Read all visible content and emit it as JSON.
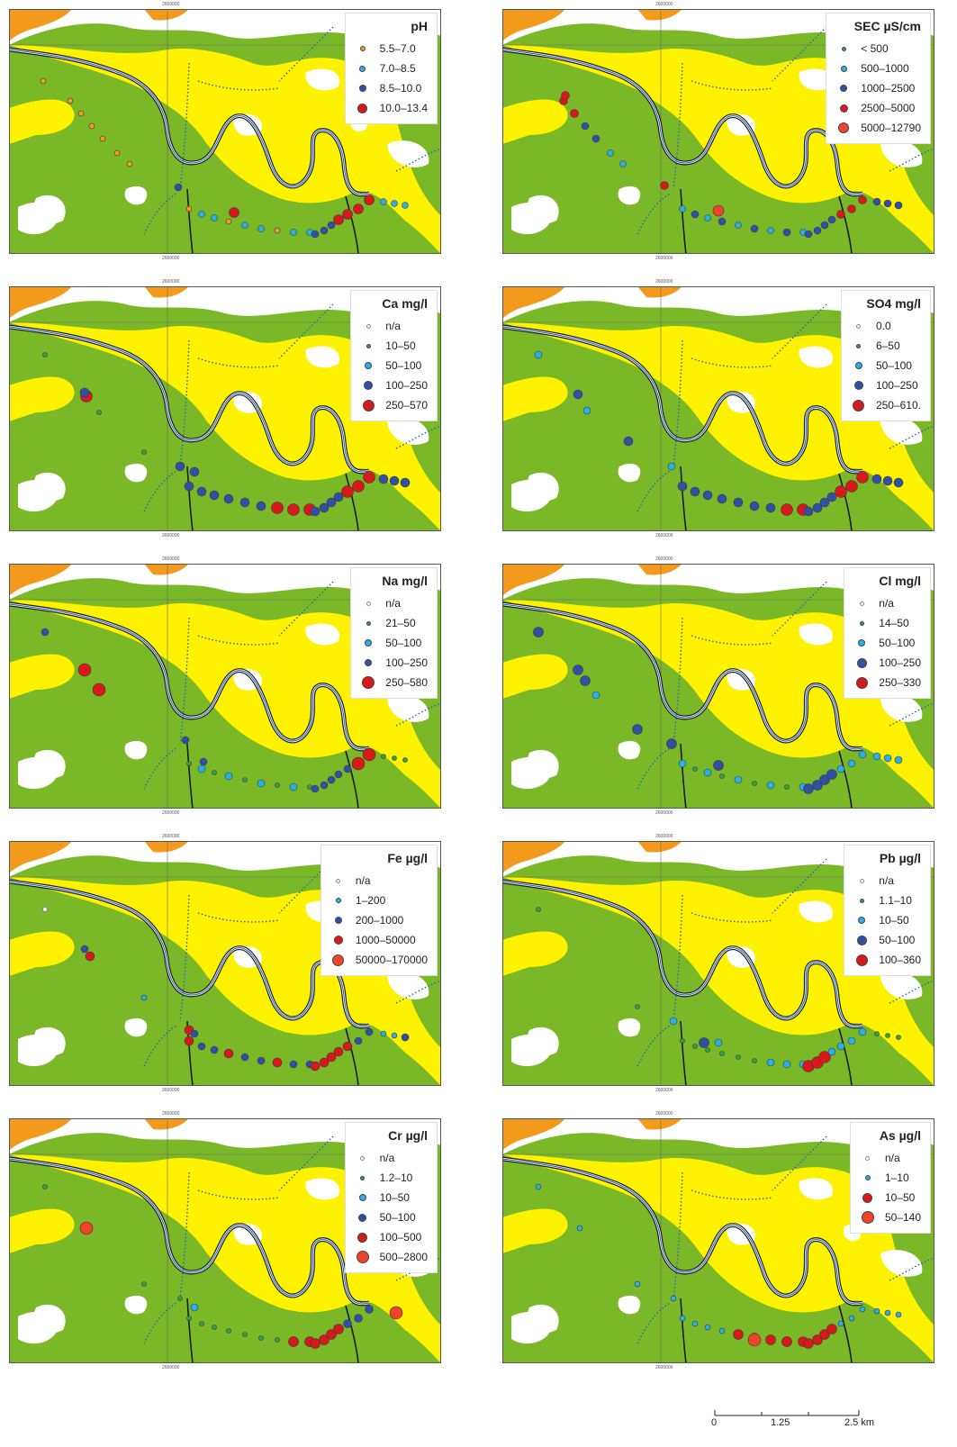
{
  "colors": {
    "green": "#7ab828",
    "yellow": "#fff200",
    "orange": "#f39a1d",
    "river": "#1d5f9c",
    "road": "#1a1a1a",
    "stream": "#1e63b5",
    "grid": "#666666"
  },
  "grid_labels": {
    "easting": "2600000",
    "northing": "6860000"
  },
  "panels": [
    {
      "id": "ph",
      "title": "pH",
      "legend": [
        {
          "label": "5.5–7.0",
          "color": "#f39a1d",
          "size": 6
        },
        {
          "label": "7.0–8.5",
          "color": "#2bb0e6",
          "size": 7
        },
        {
          "label": "8.5–10.0",
          "color": "#3050a6",
          "size": 8
        },
        {
          "label": "10.0–13.4",
          "color": "#d7191c",
          "size": 11
        }
      ]
    },
    {
      "id": "sec",
      "title": "SEC µS/cm",
      "legend": [
        {
          "label": "< 500",
          "color": "#34a04a",
          "size": 5
        },
        {
          "label": "500–1000",
          "color": "#2bb0e6",
          "size": 7
        },
        {
          "label": "1000–2500",
          "color": "#3050a6",
          "size": 8
        },
        {
          "label": "2500–5000",
          "color": "#d7191c",
          "size": 9
        },
        {
          "label": "5000–12790",
          "color": "#f0442a",
          "size": 12
        }
      ]
    },
    {
      "id": "ca",
      "title": "Ca mg/l",
      "legend": [
        {
          "label": "n/a",
          "color": "#ffffff",
          "size": 5
        },
        {
          "label": "10–50",
          "color": "#34a04a",
          "size": 5
        },
        {
          "label": "50–100",
          "color": "#2bb0e6",
          "size": 8
        },
        {
          "label": "100–250",
          "color": "#3050a6",
          "size": 10
        },
        {
          "label": "250–570",
          "color": "#d7191c",
          "size": 13
        }
      ]
    },
    {
      "id": "so4",
      "title": "SO4 mg/l",
      "legend": [
        {
          "label": "0.0",
          "color": "#ffffff",
          "size": 5
        },
        {
          "label": "6–50",
          "color": "#34a04a",
          "size": 5
        },
        {
          "label": "50–100",
          "color": "#2bb0e6",
          "size": 8
        },
        {
          "label": "100–250",
          "color": "#3050a6",
          "size": 10
        },
        {
          "label": "250–610.",
          "color": "#d7191c",
          "size": 13
        }
      ]
    },
    {
      "id": "na",
      "title": "Na mg/l",
      "legend": [
        {
          "label": "n/a",
          "color": "#ffffff",
          "size": 5
        },
        {
          "label": "21–50",
          "color": "#34a04a",
          "size": 5
        },
        {
          "label": "50–100",
          "color": "#2bb0e6",
          "size": 8
        },
        {
          "label": "100–250",
          "color": "#3050a6",
          "size": 8
        },
        {
          "label": "250–580",
          "color": "#d7191c",
          "size": 14
        }
      ]
    },
    {
      "id": "cl",
      "title": "Cl mg/l",
      "legend": [
        {
          "label": "n/a",
          "color": "#ffffff",
          "size": 5
        },
        {
          "label": "14–50",
          "color": "#34a04a",
          "size": 5
        },
        {
          "label": "50–100",
          "color": "#2bb0e6",
          "size": 8
        },
        {
          "label": "100–250",
          "color": "#3050a6",
          "size": 11
        },
        {
          "label": "250–330",
          "color": "#d7191c",
          "size": 13
        }
      ]
    },
    {
      "id": "fe",
      "title": "Fe µg/l",
      "legend": [
        {
          "label": "n/a",
          "color": "#ffffff",
          "size": 5
        },
        {
          "label": "1–200",
          "color": "#2bb0e6",
          "size": 6
        },
        {
          "label": "200–1000",
          "color": "#3050a6",
          "size": 8
        },
        {
          "label": "1000–50000",
          "color": "#d7191c",
          "size": 10
        },
        {
          "label": "50000–170000",
          "color": "#f0442a",
          "size": 13
        }
      ]
    },
    {
      "id": "pb",
      "title": "Pb µg/l",
      "legend": [
        {
          "label": "n/a",
          "color": "#ffffff",
          "size": 5
        },
        {
          "label": "1.1–10",
          "color": "#34a04a",
          "size": 5
        },
        {
          "label": "10–50",
          "color": "#2bb0e6",
          "size": 8
        },
        {
          "label": "50–100",
          "color": "#3050a6",
          "size": 11
        },
        {
          "label": "100–360",
          "color": "#d7191c",
          "size": 13
        }
      ]
    },
    {
      "id": "cr",
      "title": "Cr µg/l",
      "legend": [
        {
          "label": "n/a",
          "color": "#ffffff",
          "size": 5
        },
        {
          "label": "1.2–10",
          "color": "#34a04a",
          "size": 5
        },
        {
          "label": "10–50",
          "color": "#2bb0e6",
          "size": 8
        },
        {
          "label": "50–100",
          "color": "#3050a6",
          "size": 9
        },
        {
          "label": "100–500",
          "color": "#d7191c",
          "size": 11
        },
        {
          "label": "500–2800",
          "color": "#f0442a",
          "size": 14
        }
      ]
    },
    {
      "id": "as",
      "title": "As µg/l",
      "legend": [
        {
          "label": "n/a",
          "color": "#ffffff",
          "size": 5
        },
        {
          "label": "1–10",
          "color": "#2bb0e6",
          "size": 6
        },
        {
          "label": "10–50",
          "color": "#d7191c",
          "size": 11
        },
        {
          "label": "50–140",
          "color": "#f0442a",
          "size": 14
        }
      ]
    }
  ],
  "scale_bar": {
    "labels": [
      "0",
      "1.25",
      "2.5 km"
    ]
  }
}
